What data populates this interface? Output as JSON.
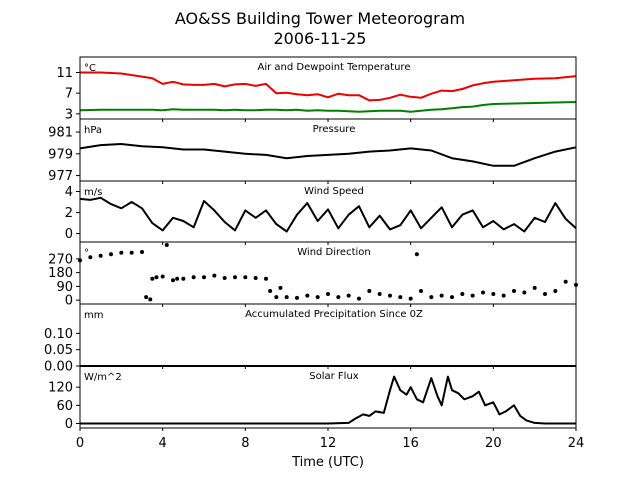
{
  "figure": {
    "title": "AO&SS Building Tower Meteorogram",
    "subtitle": "2006-11-25",
    "xlabel": "Time (UTC)"
  },
  "colors": {
    "temperature": "#ee0000",
    "dewpoint": "#008000",
    "black": "#000000"
  },
  "chart_data": [
    {
      "type": "line",
      "title": "Air and Dewpoint Temperature",
      "unit": "°C",
      "xlim": [
        0,
        24
      ],
      "ylim": [
        2,
        14
      ],
      "yticks": [
        3,
        7,
        11
      ],
      "xticks": [
        0,
        4,
        8,
        12,
        16,
        20,
        24
      ],
      "x": [
        0,
        1,
        2,
        3,
        3.5,
        4,
        4.5,
        5,
        5.5,
        6,
        6.5,
        7,
        7.5,
        8,
        8.5,
        9,
        9.5,
        10,
        10.5,
        11,
        11.5,
        12,
        12.5,
        13,
        13.5,
        14,
        14.5,
        15,
        15.5,
        16,
        16.5,
        17,
        17.5,
        18,
        18.5,
        19,
        19.5,
        20,
        21,
        22,
        23,
        24
      ],
      "series": [
        {
          "name": "Air Temperature",
          "color": "temperature",
          "values": [
            11,
            11,
            10.8,
            10.2,
            9.9,
            8.8,
            9.2,
            8.7,
            8.6,
            8.6,
            8.8,
            8.3,
            8.7,
            8.8,
            8.4,
            8.8,
            7,
            7.1,
            6.8,
            6.6,
            6.8,
            6.2,
            6.9,
            6.6,
            6.6,
            5.6,
            5.7,
            6.1,
            6.7,
            6.3,
            6.1,
            6.9,
            7.5,
            7.4,
            7.8,
            8.5,
            8.9,
            9.2,
            9.5,
            9.8,
            9.9,
            10.3
          ]
        },
        {
          "name": "Dewpoint",
          "color": "dewpoint",
          "values": [
            3.7,
            3.8,
            3.8,
            3.8,
            3.8,
            3.7,
            3.9,
            3.8,
            3.8,
            3.8,
            3.8,
            3.7,
            3.8,
            3.7,
            3.7,
            3.8,
            3.8,
            3.7,
            3.8,
            3.6,
            3.7,
            3.6,
            3.6,
            3.5,
            3.4,
            3.5,
            3.6,
            3.6,
            3.6,
            3.4,
            3.6,
            3.8,
            3.9,
            4.1,
            4.3,
            4.4,
            4.7,
            4.9,
            5,
            5.1,
            5.2,
            5.3
          ]
        }
      ]
    },
    {
      "type": "line",
      "title": "Pressure",
      "unit": "hPa",
      "xlim": [
        0,
        24
      ],
      "ylim": [
        976.5,
        982.2
      ],
      "yticks": [
        977,
        979,
        981
      ],
      "x": [
        0,
        1,
        2,
        3,
        4,
        5,
        6,
        7,
        8,
        9,
        10,
        11,
        12,
        13,
        14,
        15,
        16,
        17,
        18,
        19,
        20,
        21,
        22,
        23,
        24
      ],
      "series": [
        {
          "name": "Pressure",
          "color": "black",
          "values": [
            979.5,
            979.8,
            979.9,
            979.7,
            979.6,
            979.4,
            979.4,
            979.2,
            979,
            978.9,
            978.6,
            978.8,
            978.9,
            979,
            979.2,
            979.3,
            979.5,
            979.3,
            978.6,
            978.3,
            977.9,
            977.9,
            978.6,
            979.2,
            979.6
          ]
        }
      ]
    },
    {
      "type": "line",
      "title": "Wind Speed",
      "unit": "m/s",
      "xlim": [
        0,
        24
      ],
      "ylim": [
        -0.8,
        5
      ],
      "yticks": [
        0,
        2,
        4
      ],
      "x": [
        0,
        0.5,
        1,
        1.5,
        2,
        2.5,
        3,
        3.5,
        4,
        4.5,
        5,
        5.5,
        6,
        6.5,
        7,
        7.5,
        8,
        8.5,
        9,
        9.5,
        10,
        10.5,
        11,
        11.5,
        12,
        12.5,
        13,
        13.5,
        14,
        14.5,
        15,
        15.5,
        16,
        16.5,
        17,
        17.5,
        18,
        18.5,
        19,
        19.5,
        20,
        20.5,
        21,
        21.5,
        22,
        22.5,
        23,
        23.5,
        24
      ],
      "series": [
        {
          "name": "Wind Speed",
          "color": "black",
          "values": [
            3.3,
            3.2,
            3.4,
            2.8,
            2.4,
            3,
            2.4,
            1,
            0.3,
            1.5,
            1.2,
            0.6,
            3.1,
            2.2,
            1.1,
            0.3,
            2.2,
            1.5,
            2.2,
            0.9,
            0.2,
            1.8,
            2.9,
            1.2,
            2.3,
            0.5,
            1.8,
            2.6,
            0.6,
            1.7,
            0.4,
            0.8,
            2.2,
            0.5,
            1.5,
            2.5,
            0.6,
            1.8,
            2.2,
            0.6,
            1.2,
            0.4,
            0.9,
            0.2,
            1.5,
            1.1,
            2.9,
            1.4,
            0.5
          ]
        }
      ]
    },
    {
      "type": "scatter",
      "title": "Wind Direction",
      "unit": "°",
      "xlim": [
        0,
        24
      ],
      "ylim": [
        -25,
        380
      ],
      "yticks": [
        0,
        90,
        180,
        270
      ],
      "x": [
        0,
        0.5,
        1,
        1.5,
        2,
        2.5,
        3,
        3.2,
        3.4,
        3.5,
        3.7,
        4,
        4.2,
        4.5,
        4.7,
        5,
        5.5,
        6,
        6.5,
        7,
        7.5,
        8,
        8.5,
        9,
        9.2,
        9.5,
        9.7,
        10,
        10.5,
        11,
        11.5,
        12,
        12.5,
        13,
        13.5,
        14,
        14.5,
        15,
        15.5,
        16,
        16.3,
        16.5,
        17,
        17.5,
        18,
        18.5,
        19,
        19.5,
        20,
        20.5,
        21,
        21.5,
        22,
        22.5,
        23,
        23.5,
        24
      ],
      "series": [
        {
          "name": "Wind Direction",
          "color": "black",
          "values": [
            260,
            280,
            290,
            300,
            310,
            310,
            315,
            20,
            5,
            140,
            150,
            155,
            360,
            130,
            140,
            140,
            150,
            150,
            160,
            145,
            150,
            150,
            145,
            140,
            60,
            20,
            80,
            20,
            15,
            30,
            20,
            40,
            20,
            30,
            10,
            60,
            40,
            30,
            20,
            10,
            300,
            60,
            20,
            30,
            20,
            40,
            30,
            50,
            40,
            30,
            60,
            50,
            80,
            40,
            60,
            120,
            100
          ]
        }
      ]
    },
    {
      "type": "line",
      "title": "Accumulated Precipitation Since 0Z",
      "unit": "mm",
      "xlim": [
        0,
        24
      ],
      "ylim": [
        0,
        0.19
      ],
      "yticks": [
        0,
        0.05,
        0.1
      ],
      "yticklabels": [
        "0.00",
        "0.05",
        "0.10"
      ],
      "x": [
        0,
        24
      ],
      "series": [
        {
          "name": "Precipitation",
          "color": "black",
          "values": [
            0,
            0
          ]
        }
      ]
    },
    {
      "type": "line",
      "title": "Solar Flux",
      "unit": "W/m^2",
      "xlim": [
        0,
        24
      ],
      "ylim": [
        -15,
        190
      ],
      "yticks": [
        0,
        60,
        120
      ],
      "x": [
        0,
        1,
        2,
        3,
        4,
        5,
        6,
        7,
        8,
        9,
        10,
        11,
        12,
        13,
        13.3,
        13.7,
        14,
        14.3,
        14.7,
        15,
        15.2,
        15.5,
        15.8,
        16,
        16.3,
        16.6,
        17,
        17.3,
        17.5,
        17.8,
        18,
        18.3,
        18.6,
        19,
        19.3,
        19.6,
        20,
        20.3,
        20.6,
        21,
        21.3,
        21.6,
        22,
        22.5,
        23,
        24
      ],
      "series": [
        {
          "name": "Solar Flux",
          "color": "black",
          "values": [
            0,
            0,
            0,
            0,
            0,
            0,
            0,
            0,
            0,
            0,
            0,
            0,
            0,
            2,
            15,
            30,
            25,
            40,
            35,
            110,
            155,
            110,
            95,
            120,
            80,
            70,
            150,
            90,
            60,
            155,
            110,
            100,
            80,
            90,
            105,
            60,
            70,
            30,
            40,
            60,
            25,
            10,
            2,
            0,
            0,
            0
          ]
        }
      ]
    }
  ]
}
